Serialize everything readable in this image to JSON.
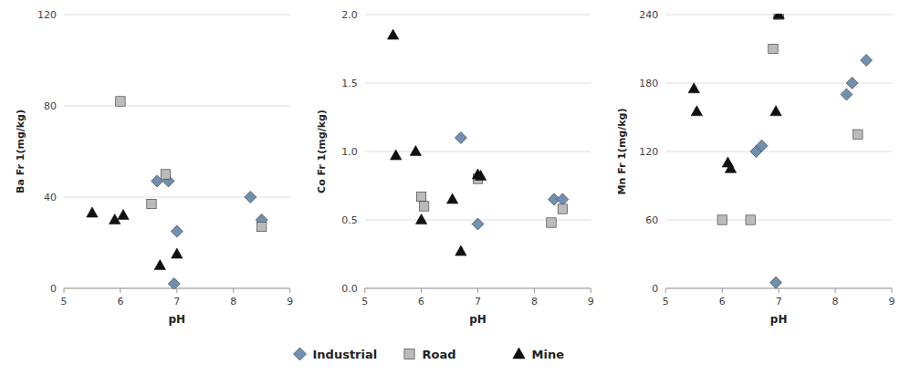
{
  "chart_data": [
    {
      "type": "scatter",
      "xlabel": "pH",
      "ylabel": "Ba Fr 1(mg/kg)",
      "xlim": [
        5,
        9
      ],
      "xticks": [
        5,
        6,
        7,
        8,
        9
      ],
      "ylim": [
        0,
        120
      ],
      "yticks": [
        0,
        40,
        80,
        120
      ],
      "grid": true,
      "series": [
        {
          "name": "Industrial",
          "color": "#7090B0",
          "marker": "diamond",
          "x": [
            6.65,
            6.85,
            6.95,
            7.0,
            8.3,
            8.5
          ],
          "values": [
            47,
            47,
            2,
            25,
            40,
            30
          ]
        },
        {
          "name": "Road",
          "color": "#BBBBBB",
          "marker": "square",
          "x": [
            6.0,
            6.55,
            6.8,
            8.5
          ],
          "values": [
            82,
            37,
            50,
            27
          ]
        },
        {
          "name": "Mine",
          "color": "#111111",
          "marker": "triangle",
          "x": [
            5.5,
            5.9,
            6.05,
            6.7,
            7.0
          ],
          "values": [
            33,
            30,
            32,
            10,
            15
          ]
        }
      ]
    },
    {
      "type": "scatter",
      "xlabel": "pH",
      "ylabel": "Co Fr 1(mg/kg)",
      "xlim": [
        5,
        9
      ],
      "xticks": [
        5,
        6,
        7,
        8,
        9
      ],
      "ylim": [
        0,
        2
      ],
      "yticks": [
        {
          "value": 0,
          "label": "0.0"
        },
        0.5,
        {
          "value": 1.0,
          "label": "1.0"
        },
        1.5,
        {
          "value": 2.0,
          "label": "2.0"
        }
      ],
      "grid": true,
      "series": [
        {
          "name": "Industrial",
          "color": "#7090B0",
          "marker": "diamond",
          "x": [
            6.7,
            7.0,
            8.35,
            8.5
          ],
          "values": [
            1.1,
            0.47,
            0.65,
            0.65
          ]
        },
        {
          "name": "Road",
          "color": "#BBBBBB",
          "marker": "square",
          "x": [
            6.0,
            6.05,
            7.0,
            8.3,
            8.5
          ],
          "values": [
            0.67,
            0.6,
            0.8,
            0.48,
            0.58
          ]
        },
        {
          "name": "Mine",
          "color": "#111111",
          "marker": "triangle",
          "x": [
            5.5,
            5.55,
            5.9,
            6.0,
            6.55,
            6.7,
            7.0,
            7.05
          ],
          "values": [
            1.85,
            0.97,
            1.0,
            0.5,
            0.65,
            0.27,
            0.83,
            0.82
          ]
        }
      ]
    },
    {
      "type": "scatter",
      "xlabel": "pH",
      "ylabel": "Mn Fr 1(mg/kg)",
      "xlim": [
        5,
        9
      ],
      "xticks": [
        5,
        6,
        7,
        8,
        9
      ],
      "ylim": [
        0,
        240
      ],
      "yticks": [
        0,
        60,
        120,
        180,
        240
      ],
      "grid": true,
      "series": [
        {
          "name": "Industrial",
          "color": "#7090B0",
          "marker": "diamond",
          "x": [
            6.6,
            6.7,
            6.95,
            8.2,
            8.3,
            8.55
          ],
          "values": [
            120,
            125,
            5,
            170,
            180,
            200
          ]
        },
        {
          "name": "Road",
          "color": "#BBBBBB",
          "marker": "square",
          "x": [
            6.0,
            6.5,
            6.9,
            7.0,
            8.4
          ],
          "values": [
            60,
            60,
            210,
            240,
            135
          ]
        },
        {
          "name": "Mine",
          "color": "#111111",
          "marker": "triangle",
          "x": [
            5.5,
            5.55,
            6.1,
            6.15,
            6.95,
            7.0
          ],
          "values": [
            175,
            155,
            110,
            105,
            155,
            240
          ]
        }
      ]
    }
  ]
}
